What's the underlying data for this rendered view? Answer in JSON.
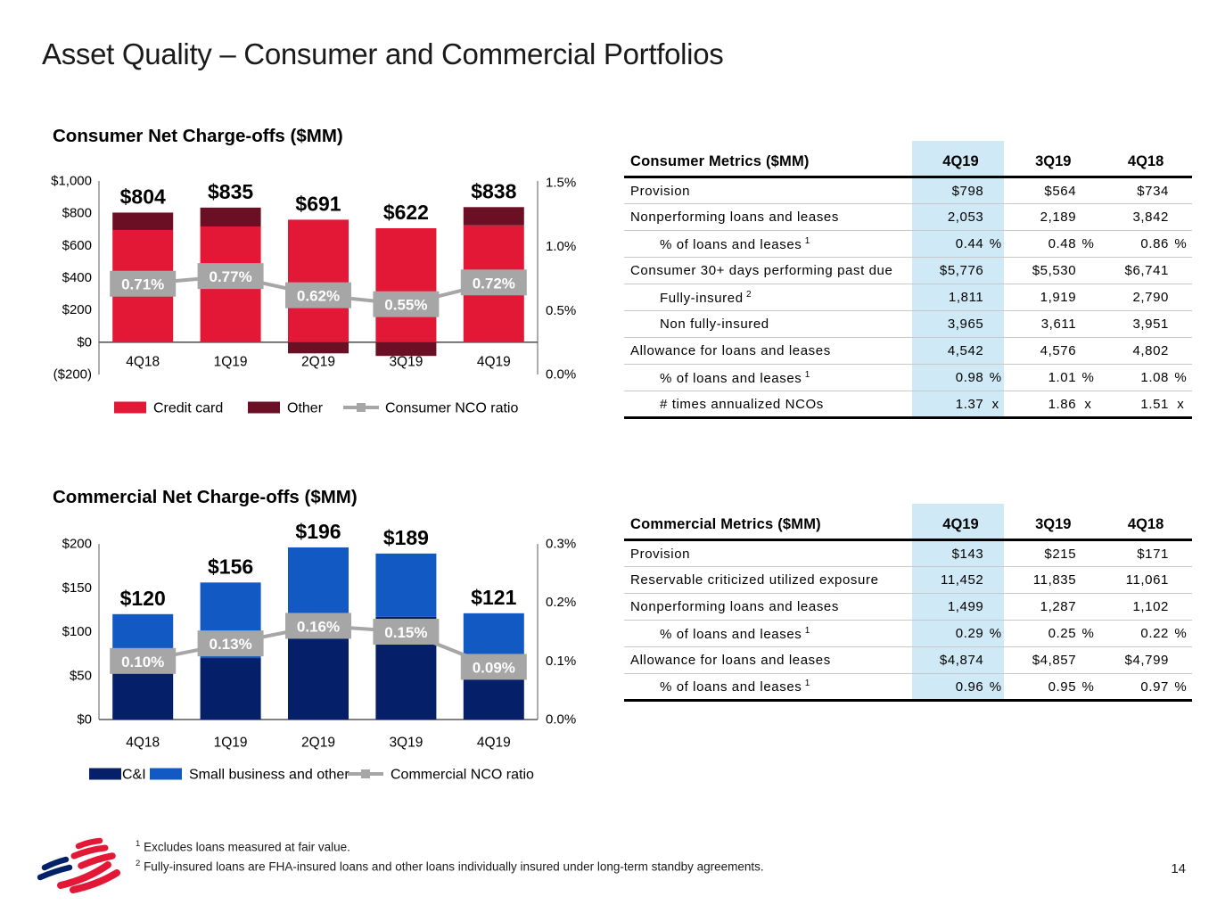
{
  "slide": {
    "title": "Asset Quality – Consumer and Commercial Portfolios",
    "page_number": "14"
  },
  "colors": {
    "credit_card_red": "#e31837",
    "other_dark_red": "#6b0f24",
    "ci_navy": "#052068",
    "small_business_blue": "#1259c4",
    "ratio_grey": "#a6a6a6",
    "highlight_blue": "#cfe9f6"
  },
  "chart_data": [
    {
      "id": "consumer_nco",
      "type": "bar",
      "title": "Consumer Net Charge-offs ($MM)",
      "categories": [
        "4Q18",
        "1Q19",
        "2Q19",
        "3Q19",
        "4Q19"
      ],
      "series": [
        {
          "name": "Credit card",
          "color": "#e31837",
          "values": [
            696,
            718,
            760,
            707,
            725
          ]
        },
        {
          "name": "Other",
          "color": "#6b0f24",
          "values": [
            108,
            117,
            -69,
            -85,
            113
          ]
        }
      ],
      "totals": [
        "$804",
        "$835",
        "$691",
        "$622",
        "$838"
      ],
      "line": {
        "name": "Consumer NCO ratio",
        "color": "#a6a6a6",
        "values": [
          0.71,
          0.77,
          0.62,
          0.55,
          0.72
        ],
        "labels": [
          "0.71%",
          "0.77%",
          "0.62%",
          "0.55%",
          "0.72%"
        ]
      },
      "left_axis": {
        "min": -200,
        "max": 1000,
        "ticks": [
          "$1,000",
          "$800",
          "$600",
          "$400",
          "$200",
          "$0",
          "($200)"
        ]
      },
      "right_axis": {
        "min": 0,
        "max": 1.5,
        "ticks": [
          "1.5%",
          "1.0%",
          "0.5%",
          "0.0%"
        ]
      },
      "grid": false,
      "legend_position": "bottom"
    },
    {
      "id": "commercial_nco",
      "type": "bar",
      "title": "Commercial Net Charge-offs ($MM)",
      "categories": [
        "4Q18",
        "1Q19",
        "2Q19",
        "3Q19",
        "4Q19"
      ],
      "series": [
        {
          "name": "C&I",
          "color": "#052068",
          "values": [
            56,
            70,
            114,
            117,
            48
          ]
        },
        {
          "name": "Small business and other",
          "color": "#1259c4",
          "values": [
            64,
            86,
            82,
            72,
            73
          ]
        }
      ],
      "totals": [
        "$120",
        "$156",
        "$196",
        "$189",
        "$121"
      ],
      "line": {
        "name": "Commercial NCO ratio",
        "color": "#a6a6a6",
        "values": [
          0.1,
          0.13,
          0.16,
          0.15,
          0.09
        ],
        "labels": [
          "0.10%",
          "0.13%",
          "0.16%",
          "0.15%",
          "0.09%"
        ]
      },
      "left_axis": {
        "min": 0,
        "max": 200,
        "ticks": [
          "$200",
          "$150",
          "$100",
          "$50",
          "$0"
        ]
      },
      "right_axis": {
        "min": 0,
        "max": 0.3,
        "ticks": [
          "0.3%",
          "0.2%",
          "0.1%",
          "0.0%"
        ]
      },
      "grid": false,
      "legend_position": "bottom"
    }
  ],
  "consumer_table": {
    "title": "Consumer Metrics ($MM)",
    "columns": [
      "4Q19",
      "3Q19",
      "4Q18"
    ],
    "highlight_column": "4Q19",
    "rows": [
      {
        "label": "Provision",
        "indent": 0,
        "values": [
          "$798",
          "$564",
          "$734"
        ],
        "suffix": ""
      },
      {
        "label": "Nonperforming loans and leases",
        "indent": 0,
        "values": [
          "2,053",
          "2,189",
          "3,842"
        ],
        "suffix": ""
      },
      {
        "label": "% of loans and leases",
        "sup": "1",
        "indent": 1,
        "values": [
          "0.44",
          "0.48",
          "0.86"
        ],
        "suffix": "%"
      },
      {
        "label": "Consumer 30+ days performing past due",
        "indent": 0,
        "values": [
          "$5,776",
          "$5,530",
          "$6,741"
        ],
        "suffix": ""
      },
      {
        "label": "Fully-insured",
        "sup": "2",
        "indent": 1,
        "values": [
          "1,811",
          "1,919",
          "2,790"
        ],
        "suffix": ""
      },
      {
        "label": "Non fully-insured",
        "indent": 1,
        "values": [
          "3,965",
          "3,611",
          "3,951"
        ],
        "suffix": ""
      },
      {
        "label": "Allowance for loans and leases",
        "indent": 0,
        "values": [
          "4,542",
          "4,576",
          "4,802"
        ],
        "suffix": ""
      },
      {
        "label": "% of loans and leases",
        "sup": "1",
        "indent": 1,
        "values": [
          "0.98",
          "1.01",
          "1.08"
        ],
        "suffix": "%"
      },
      {
        "label": "# times annualized NCOs",
        "indent": 1,
        "values": [
          "1.37",
          "1.86",
          "1.51"
        ],
        "suffix": "x"
      }
    ]
  },
  "commercial_table": {
    "title": "Commercial Metrics ($MM)",
    "columns": [
      "4Q19",
      "3Q19",
      "4Q18"
    ],
    "highlight_column": "4Q19",
    "rows": [
      {
        "label": "Provision",
        "indent": 0,
        "values": [
          "$143",
          "$215",
          "$171"
        ],
        "suffix": ""
      },
      {
        "label": "Reservable criticized utilized exposure",
        "indent": 0,
        "values": [
          "11,452",
          "11,835",
          "11,061"
        ],
        "suffix": ""
      },
      {
        "label": "Nonperforming loans and leases",
        "indent": 0,
        "values": [
          "1,499",
          "1,287",
          "1,102"
        ],
        "suffix": ""
      },
      {
        "label": "% of loans and leases",
        "sup": "1",
        "indent": 1,
        "values": [
          "0.29",
          "0.25",
          "0.22"
        ],
        "suffix": "%"
      },
      {
        "label": "Allowance for loans and leases",
        "indent": 0,
        "values": [
          "$4,874",
          "$4,857",
          "$4,799"
        ],
        "suffix": ""
      },
      {
        "label": "% of loans and leases",
        "sup": "1",
        "indent": 1,
        "values": [
          "0.96",
          "0.95",
          "0.97"
        ],
        "suffix": "%"
      }
    ]
  },
  "footnotes": [
    {
      "sup": "1",
      "text": "Excludes loans measured at fair value."
    },
    {
      "sup": "2",
      "text": "Fully-insured loans are FHA-insured loans and other loans individually insured under long-term standby agreements."
    }
  ]
}
